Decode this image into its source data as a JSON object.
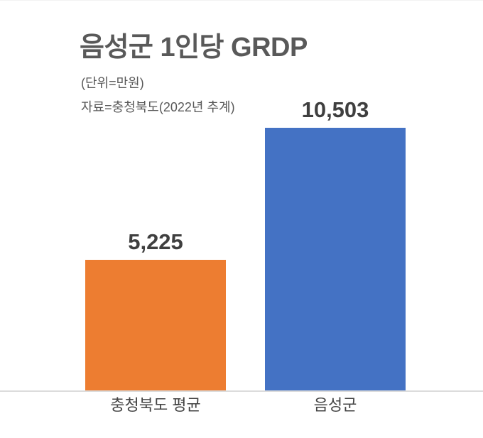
{
  "header": {
    "title": "음성군 1인당 GRDP",
    "unit_note": "(단위=만원)",
    "source_note": "자료=충청북도(2022년 추계)"
  },
  "chart_data": {
    "type": "bar",
    "title": "음성군 1인당 GRDP",
    "subtitle": "(단위=만원)",
    "source": "자료=충청북도(2022년 추계)",
    "categories": [
      "충청북도 평균",
      "음성군"
    ],
    "values": [
      5225,
      10503
    ],
    "value_labels": [
      "5,225",
      "10,503"
    ],
    "colors": [
      "#ED7D31",
      "#4472C4"
    ],
    "ylim": [
      0,
      10503
    ],
    "grid": false,
    "legend": false,
    "orientation": "vertical",
    "axis_line_color": "#DCDCDC",
    "title_color": "#595959",
    "note_color": "#595959",
    "value_label_color": "#3F3F3F",
    "category_label_color": "#444444",
    "background_color": "#FFFFFF"
  }
}
